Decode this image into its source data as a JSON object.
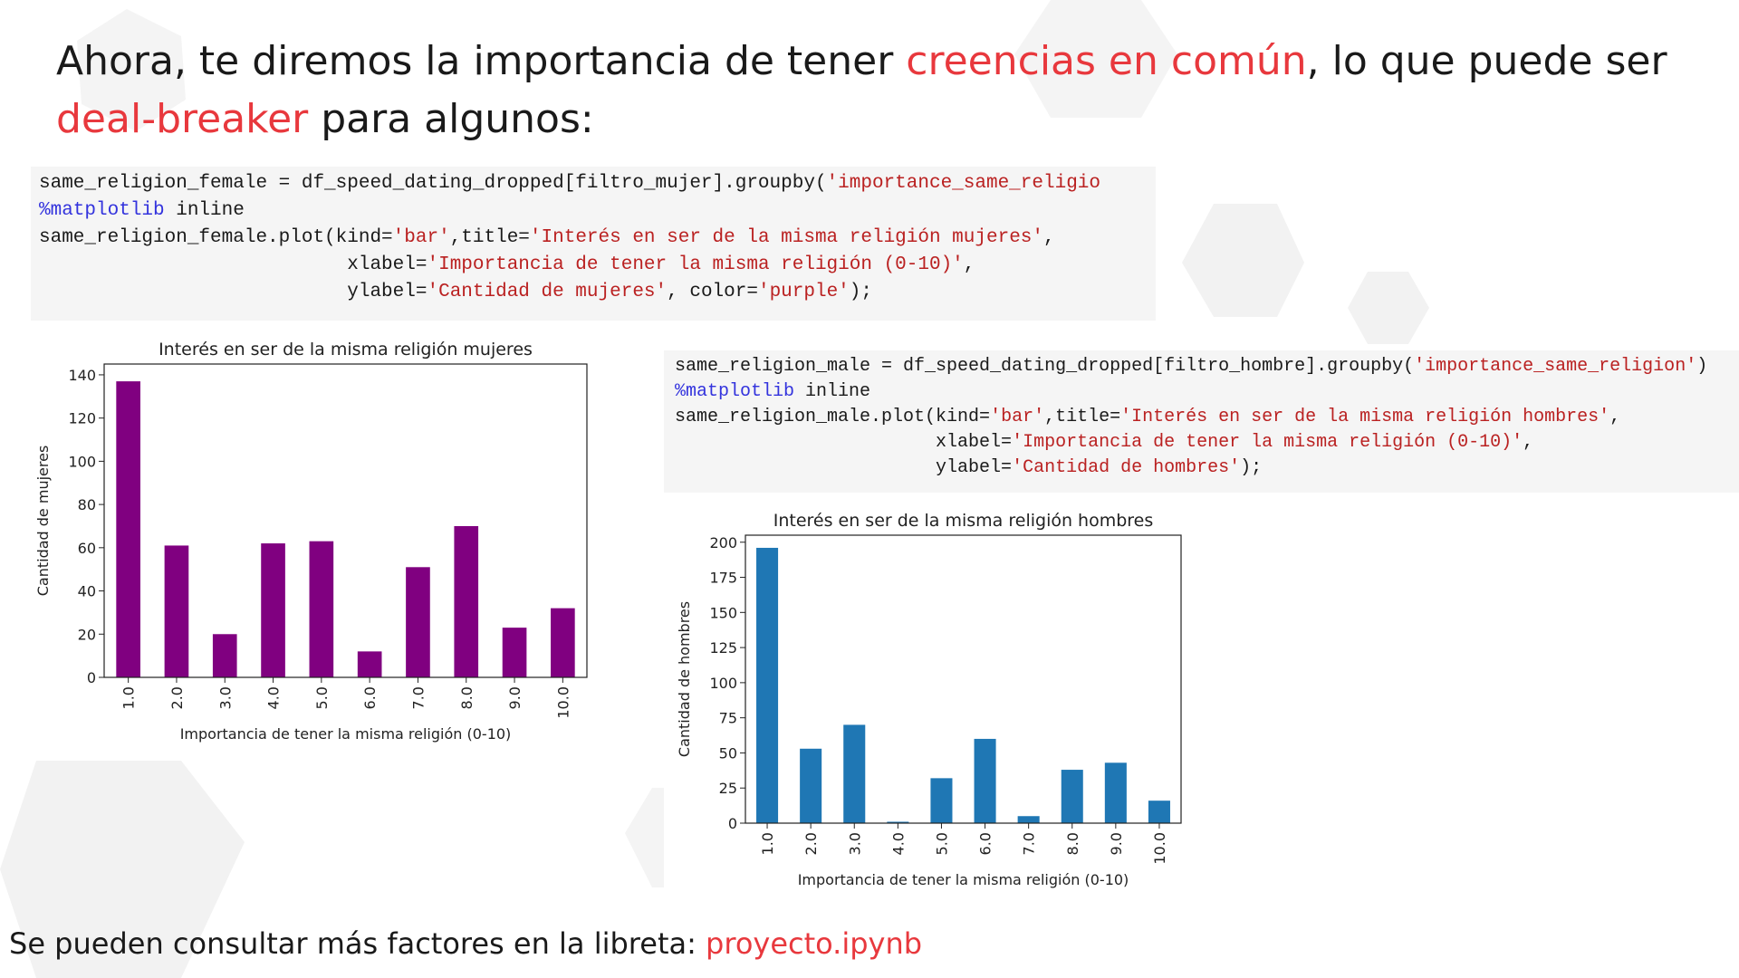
{
  "heading": [
    {
      "text": "Ahora, te diremos la importancia de tener ",
      "color": "#1a1a1a"
    },
    {
      "text": "creencias en común",
      "color": "#e8383d"
    },
    {
      "text": ", lo que puede ser ",
      "color": "#1a1a1a"
    },
    {
      "text": "deal-breaker",
      "color": "#e8383d"
    },
    {
      "text": " para algunos:",
      "color": "#1a1a1a"
    }
  ],
  "code_blocks": [
    [
      [
        {
          "text": "same_religion_female = df_speed_dating_dropped[filtro_mujer].groupby(",
          "color": "#1a1a1a"
        },
        {
          "text": "'importance_same_religio",
          "color": "#ba2121"
        }
      ],
      [
        {
          "text": "%matplotlib",
          "color": "#3333dd"
        },
        {
          "text": " inline",
          "color": "#1a1a1a"
        }
      ],
      [
        {
          "text": "same_religion_female.plot(kind=",
          "color": "#1a1a1a"
        },
        {
          "text": "'bar'",
          "color": "#ba2121"
        },
        {
          "text": ",title=",
          "color": "#1a1a1a"
        },
        {
          "text": "'Interés en ser de la misma religión mujeres'",
          "color": "#ba2121"
        },
        {
          "text": ",",
          "color": "#1a1a1a"
        }
      ],
      [
        {
          "text": "                           xlabel=",
          "color": "#1a1a1a"
        },
        {
          "text": "'Importancia de tener la misma religión (0-10)'",
          "color": "#ba2121"
        },
        {
          "text": ",",
          "color": "#1a1a1a"
        }
      ],
      [
        {
          "text": "                           ylabel=",
          "color": "#1a1a1a"
        },
        {
          "text": "'Cantidad de mujeres'",
          "color": "#ba2121"
        },
        {
          "text": ", color=",
          "color": "#1a1a1a"
        },
        {
          "text": "'purple'",
          "color": "#ba2121"
        },
        {
          "text": ");",
          "color": "#1a1a1a"
        }
      ]
    ],
    [
      [
        {
          "text": "same_religion_male = df_speed_dating_dropped[filtro_hombre].groupby(",
          "color": "#1a1a1a"
        },
        {
          "text": "'importance_same_religion'",
          "color": "#ba2121"
        },
        {
          "text": ")",
          "color": "#1a1a1a"
        }
      ],
      [
        {
          "text": "%matplotlib",
          "color": "#3333dd"
        },
        {
          "text": " inline",
          "color": "#1a1a1a"
        }
      ],
      [
        {
          "text": "same_religion_male.plot(kind=",
          "color": "#1a1a1a"
        },
        {
          "text": "'bar'",
          "color": "#ba2121"
        },
        {
          "text": ",title=",
          "color": "#1a1a1a"
        },
        {
          "text": "'Interés en ser de la misma religión hombres'",
          "color": "#ba2121"
        },
        {
          "text": ",",
          "color": "#1a1a1a"
        }
      ],
      [
        {
          "text": "                        xlabel=",
          "color": "#1a1a1a"
        },
        {
          "text": "'Importancia de tener la misma religión (0-10)'",
          "color": "#ba2121"
        },
        {
          "text": ",",
          "color": "#1a1a1a"
        }
      ],
      [
        {
          "text": "                        ylabel=",
          "color": "#1a1a1a"
        },
        {
          "text": "'Cantidad de hombres'",
          "color": "#ba2121"
        },
        {
          "text": ");",
          "color": "#1a1a1a"
        }
      ]
    ]
  ],
  "footer": [
    {
      "text": "Se pueden consultar más factores en la libreta: ",
      "color": "#1a1a1a"
    },
    {
      "text": "proyecto.ipynb",
      "color": "#e8383d"
    }
  ],
  "chart_data": [
    {
      "type": "bar",
      "title": "Interés en ser de la misma religión mujeres",
      "xlabel": "Importancia de tener la misma religión (0-10)",
      "ylabel": "Cantidad de mujeres",
      "categories": [
        "1.0",
        "2.0",
        "3.0",
        "4.0",
        "5.0",
        "6.0",
        "7.0",
        "8.0",
        "9.0",
        "10.0"
      ],
      "values": [
        137,
        61,
        20,
        62,
        63,
        12,
        51,
        70,
        23,
        32
      ],
      "color": "#800080",
      "ylim": [
        0,
        145
      ],
      "yticks": [
        0,
        20,
        40,
        60,
        80,
        100,
        120,
        140
      ]
    },
    {
      "type": "bar",
      "title": "Interés en ser de la misma religión hombres",
      "xlabel": "Importancia de tener la misma religión (0-10)",
      "ylabel": "Cantidad de hombres",
      "categories": [
        "1.0",
        "2.0",
        "3.0",
        "4.0",
        "5.0",
        "6.0",
        "7.0",
        "8.0",
        "9.0",
        "10.0"
      ],
      "values": [
        196,
        53,
        70,
        1,
        32,
        60,
        5,
        38,
        43,
        16
      ],
      "color": "#1f77b4",
      "ylim": [
        0,
        205
      ],
      "yticks": [
        0,
        25,
        50,
        75,
        100,
        125,
        150,
        175,
        200
      ]
    }
  ]
}
